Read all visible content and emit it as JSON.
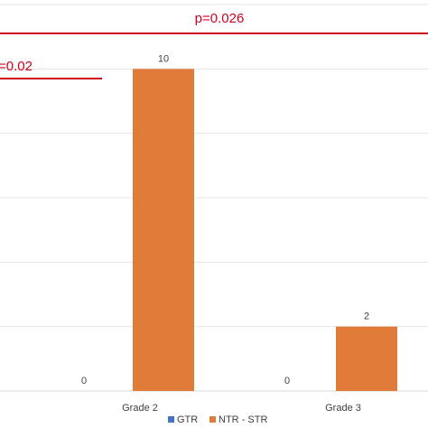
{
  "chart_data": {
    "type": "bar",
    "categories": [
      "Grade 2",
      "Grade 3"
    ],
    "series": [
      {
        "name": "GTR",
        "values": [
          0,
          0
        ],
        "color": "#4472c4"
      },
      {
        "name": "NTR - STR",
        "values": [
          10,
          2
        ],
        "color": "#e07b39"
      }
    ],
    "ylim": [
      0,
      12
    ],
    "grid": true,
    "legend": "bottom",
    "annotations": [
      {
        "text": "p=0.026",
        "color": "#d0021b"
      },
      {
        "text": "=0.02",
        "color": "#d0021b"
      }
    ]
  }
}
